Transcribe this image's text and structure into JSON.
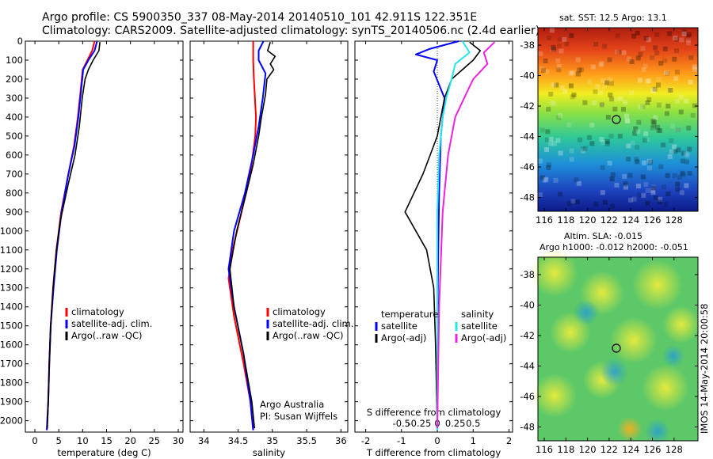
{
  "header": {
    "title_line1": "Argo profile: CS 5900350_337 08-May-2014 20140510_101 42.911S 122.351E",
    "title_line2": "Climatology: CARS2009. Satellite-adjusted climatology: synTS_20140506.nc (2.4d earlier)"
  },
  "colors": {
    "climatology": "#ff0000",
    "satellite": "#0000ff",
    "argo": "#000000",
    "s_satellite": "#22e8ee",
    "s_argo": "#ee22dd"
  },
  "panel_notes": {
    "argo_line1": "Argo Australia",
    "argo_line2": "PI: Susan Wijffels"
  },
  "diff_legend": {
    "temperature_header": "temperature",
    "salinity_header": "salinity",
    "t_satellite": "satellite",
    "t_argo": "Argo(-adj)",
    "s_satellite": "satellite",
    "s_argo": "Argo(-adj)"
  },
  "sst_map": {
    "title": "sat. SST: 12.5  Argo: 13.1",
    "yticks": [
      "-38",
      "-40",
      "-42",
      "-44",
      "-46",
      "-48"
    ],
    "xticks": [
      "116",
      "118",
      "120",
      "122",
      "124",
      "126",
      "128"
    ]
  },
  "sla_map": {
    "title_line1": "Altim. SLA: -0.015",
    "title_line2": "Argo h1000: -0.012 h2000: -0.051",
    "yticks": [
      "-38",
      "-40",
      "-42",
      "-44",
      "-46",
      "-48"
    ],
    "xticks": [
      "116",
      "118",
      "120",
      "122",
      "124",
      "126",
      "128"
    ]
  },
  "imos_stamp": "IMOS 14-May-2014 20:00:58",
  "chart_data": [
    {
      "type": "line",
      "name": "temperature-profile",
      "xlabel": "temperature (deg C)",
      "ylabel": "",
      "xlim": [
        -2,
        31
      ],
      "ylim": [
        2060,
        0
      ],
      "xticks": [
        0,
        5,
        10,
        15,
        20,
        25,
        30
      ],
      "yticks": [
        0,
        100,
        200,
        300,
        400,
        500,
        600,
        700,
        800,
        900,
        1000,
        1100,
        1200,
        1300,
        1400,
        1500,
        1600,
        1700,
        1800,
        1900,
        2000
      ],
      "legend": [
        "climatology",
        "satellite-adj. clim.",
        "Argo(..raw -QC)"
      ],
      "series": [
        {
          "name": "climatology",
          "color": "#ff0000",
          "x": [
            12.5,
            12.0,
            11.0,
            10.0,
            9.6,
            9.0,
            8.2,
            7.0,
            5.5,
            4.5,
            3.8,
            3.3,
            3.0,
            2.8,
            2.5
          ],
          "y": [
            0,
            50,
            100,
            150,
            250,
            400,
            550,
            700,
            900,
            1100,
            1300,
            1500,
            1700,
            1900,
            2050
          ]
        },
        {
          "name": "satellite-adj. clim.",
          "color": "#0000ff",
          "x": [
            13.0,
            12.5,
            11.2,
            10.1,
            9.7,
            9.1,
            8.3,
            7.0,
            5.6,
            4.6,
            3.9,
            3.3,
            3.0,
            2.8,
            2.5
          ],
          "y": [
            0,
            50,
            100,
            150,
            250,
            400,
            550,
            700,
            900,
            1100,
            1300,
            1500,
            1700,
            1900,
            2050
          ]
        },
        {
          "name": "Argo(..raw -QC)",
          "color": "#000000",
          "x": [
            13.6,
            13.4,
            12.2,
            11.2,
            10.5,
            9.9,
            9.3,
            8.4,
            7.0,
            5.3,
            4.5,
            3.8,
            3.3,
            3.0,
            2.8,
            2.6
          ],
          "y": [
            5,
            50,
            100,
            150,
            200,
            300,
            450,
            600,
            750,
            950,
            1100,
            1300,
            1500,
            1700,
            1900,
            2040
          ]
        }
      ]
    },
    {
      "type": "line",
      "name": "salinity-profile",
      "xlabel": "salinity",
      "ylabel": "",
      "xlim": [
        33.8,
        36.1
      ],
      "ylim": [
        2060,
        0
      ],
      "xticks": [
        34,
        34.5,
        35,
        35.5,
        36
      ],
      "legend": [
        "climatology",
        "satellite-adj. clim.",
        "Argo(..raw -QC)"
      ],
      "series": [
        {
          "name": "climatology",
          "color": "#ff0000",
          "x": [
            34.72,
            34.72,
            34.73,
            34.76,
            34.75,
            34.68,
            34.55,
            34.42,
            34.36,
            34.44,
            34.58,
            34.68,
            34.72
          ],
          "y": [
            0,
            100,
            200,
            400,
            500,
            700,
            900,
            1100,
            1250,
            1450,
            1700,
            1900,
            2050
          ]
        },
        {
          "name": "satellite-adj. clim.",
          "color": "#0000ff",
          "x": [
            34.87,
            34.8,
            34.8,
            34.9,
            34.86,
            34.8,
            34.72,
            34.6,
            34.44,
            34.36,
            34.44,
            34.58,
            34.68,
            34.72
          ],
          "y": [
            0,
            50,
            100,
            170,
            300,
            450,
            600,
            800,
            1000,
            1200,
            1400,
            1650,
            1900,
            2050
          ]
        },
        {
          "name": "Argo(..raw -QC)",
          "color": "#000000",
          "x": [
            34.97,
            34.93,
            35.04,
            34.97,
            35.02,
            34.92,
            34.9,
            34.84,
            34.8,
            34.72,
            34.62,
            34.48,
            34.38,
            34.44,
            34.58,
            34.7,
            34.74
          ],
          "y": [
            5,
            50,
            80,
            120,
            150,
            200,
            280,
            400,
            500,
            650,
            800,
            1000,
            1200,
            1400,
            1650,
            1900,
            2040
          ]
        }
      ]
    },
    {
      "type": "line",
      "name": "difference-from-climatology",
      "xlabel": "T difference from climatology",
      "x2label": "S difference from climatology",
      "xlim": [
        -2.3,
        2.1
      ],
      "ylim": [
        2060,
        0
      ],
      "xticks": [
        -2,
        -1,
        0,
        1,
        2
      ],
      "x2ticks": [
        "-0.5",
        "-0.25",
        "0",
        "0.25",
        "0.5"
      ],
      "series": [
        {
          "name": "temperature satellite",
          "color": "#0000ff",
          "x": [
            0.6,
            -0.2,
            -0.6,
            0.0,
            -0.1,
            0.2,
            0.1,
            0.05,
            0.02,
            0.0,
            0.0
          ],
          "y": [
            0,
            40,
            70,
            100,
            160,
            300,
            500,
            800,
            1200,
            1600,
            2050
          ]
        },
        {
          "name": "temperature Argo(-adj)",
          "color": "#000000",
          "x": [
            0.9,
            1.2,
            1.0,
            0.7,
            0.4,
            0.2,
            0.0,
            -0.2,
            -0.4,
            -0.9,
            -0.3,
            -0.1,
            -0.05,
            0.0
          ],
          "y": [
            5,
            50,
            100,
            150,
            200,
            300,
            500,
            600,
            700,
            900,
            1100,
            1300,
            1600,
            2040
          ]
        },
        {
          "name": "salinity satellite",
          "color": "#22e8ee",
          "x": [
            0.7,
            0.9,
            0.5,
            0.4,
            0.25,
            0.15,
            0.05,
            0.0,
            0.0,
            0.0
          ],
          "y": [
            0,
            60,
            120,
            200,
            300,
            400,
            600,
            900,
            1400,
            2050
          ]
        },
        {
          "name": "salinity Argo(-adj)",
          "color": "#ee22dd",
          "x": [
            1.6,
            1.3,
            1.4,
            1.0,
            0.8,
            0.5,
            0.3,
            0.15,
            0.05,
            0.0
          ],
          "y": [
            5,
            60,
            120,
            200,
            280,
            400,
            600,
            900,
            1400,
            2040
          ]
        }
      ]
    }
  ]
}
